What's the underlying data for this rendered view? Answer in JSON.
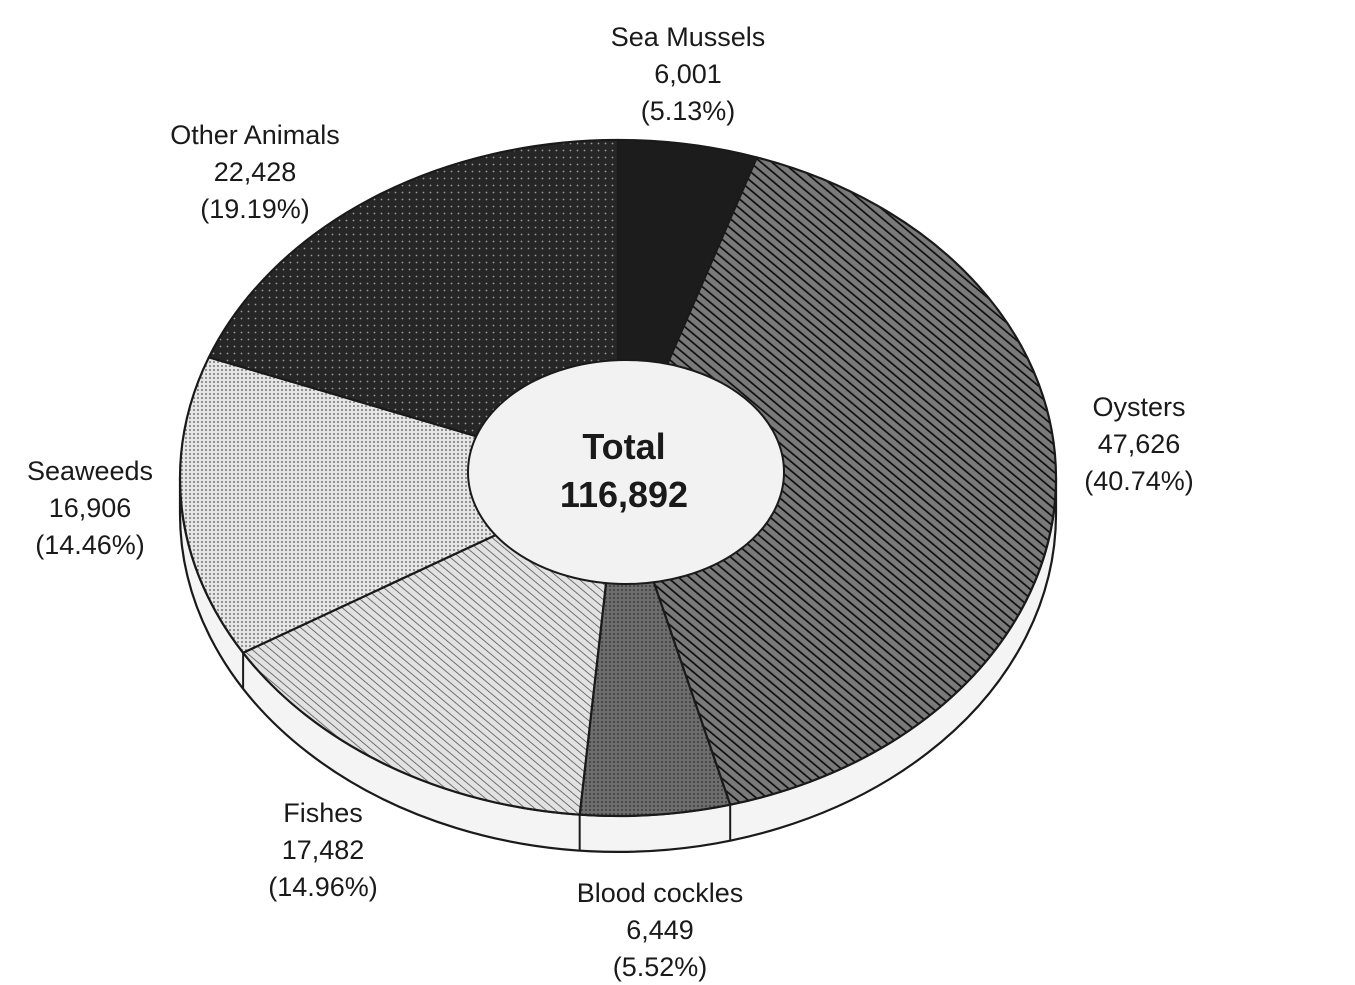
{
  "chart_data": {
    "type": "pie",
    "variant": "donut-3d",
    "center_label": {
      "title": "Total",
      "value": "116,892"
    },
    "total": 116892,
    "start_angle_deg": 0,
    "direction": "clockwise",
    "slices": [
      {
        "key": "sea-mussels",
        "name": "Sea Mussels",
        "value": 6001,
        "value_label": "6,001",
        "percent_label": "(5.13%)",
        "pattern": "solid-dark"
      },
      {
        "key": "oysters",
        "name": "Oysters",
        "value": 47626,
        "value_label": "47,626",
        "percent_label": "(40.74%)",
        "pattern": "diagonal-dense"
      },
      {
        "key": "blood-cockles",
        "name": "Blood cockles",
        "value": 6449,
        "value_label": "6,449",
        "percent_label": "(5.52%)",
        "pattern": "gray-dots"
      },
      {
        "key": "fishes",
        "name": "Fishes",
        "value": 17482,
        "value_label": "17,482",
        "percent_label": "(14.96%)",
        "pattern": "diagonal-light"
      },
      {
        "key": "seaweeds",
        "name": "Seaweeds",
        "value": 16906,
        "value_label": "16,906",
        "percent_label": "(14.46%)",
        "pattern": "dots-light"
      },
      {
        "key": "other-animals",
        "name": "Other Animals",
        "value": 22428,
        "value_label": "22,428",
        "percent_label": "(19.19%)",
        "pattern": "dots-dark"
      }
    ]
  },
  "colors": {
    "ink": "#1a1a1a",
    "rim_fill": "#f4f4f4",
    "hole_fill": "#f2f2f2",
    "solid_dark": "#1c1c1c",
    "diagonal_bg": "#7a7a7a",
    "gray_dots_bg": "#6e6e6e",
    "diagonal_light_bg": "#e2e2e2",
    "dots_light_bg": "#e6e6e6",
    "dots_dark_bg": "#262626"
  }
}
